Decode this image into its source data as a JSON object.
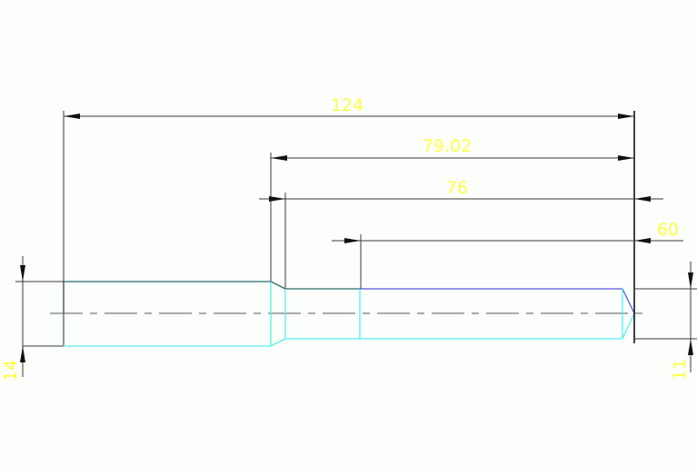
{
  "dimensions": {
    "overall_length": "124",
    "length_79": "79.02",
    "length_76": "76",
    "length_60": "60",
    "left_diameter": "14",
    "right_diameter": "11"
  },
  "colors": {
    "dimension_text": "#ffff44",
    "dimension_lines": "#3a3a3a",
    "outline_dark": "#2a6b6b",
    "outline_cyan": "#55eeee",
    "outline_blue": "#5555dd",
    "centerline": "#777777"
  }
}
